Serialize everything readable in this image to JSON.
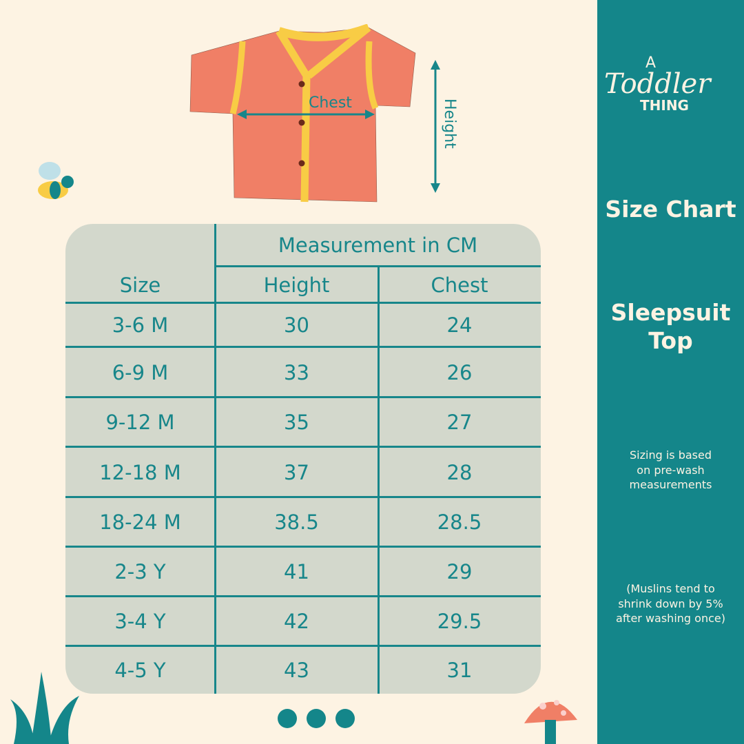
{
  "brand": {
    "logo_text": "A Toddler Thing"
  },
  "sidebar": {
    "title": "Size Chart",
    "product": [
      "Sleepsuit",
      "Top"
    ],
    "note1": [
      "Sizing is based",
      "on pre-wash",
      "measurements"
    ],
    "note2": [
      "(Muslins tend to",
      "shrink down by 5%",
      "after washing once)"
    ]
  },
  "illustration": {
    "chest_label": "Chest",
    "height_label": "Height"
  },
  "table": {
    "group_header": "Measurement in CM",
    "headers": [
      "Size",
      "Height",
      "Chest"
    ],
    "rows": [
      [
        "3-6 M",
        "30",
        "24"
      ],
      [
        "6-9 M",
        "33",
        "26"
      ],
      [
        "9-12 M",
        "35",
        "27"
      ],
      [
        "12-18 M",
        "37",
        "28"
      ],
      [
        "18-24 M",
        "38.5",
        "28.5"
      ],
      [
        "2-3 Y",
        "41",
        "29"
      ],
      [
        "3-4 Y",
        "42",
        "29.5"
      ],
      [
        "4-5 Y",
        "43",
        "31"
      ]
    ]
  },
  "colors": {
    "teal": "#14868a",
    "background": "#fdf3e3",
    "table": "#d3d8cc",
    "shirt": "#f07f66",
    "trim": "#f8cc45"
  },
  "pagination": {
    "count": 3
  }
}
